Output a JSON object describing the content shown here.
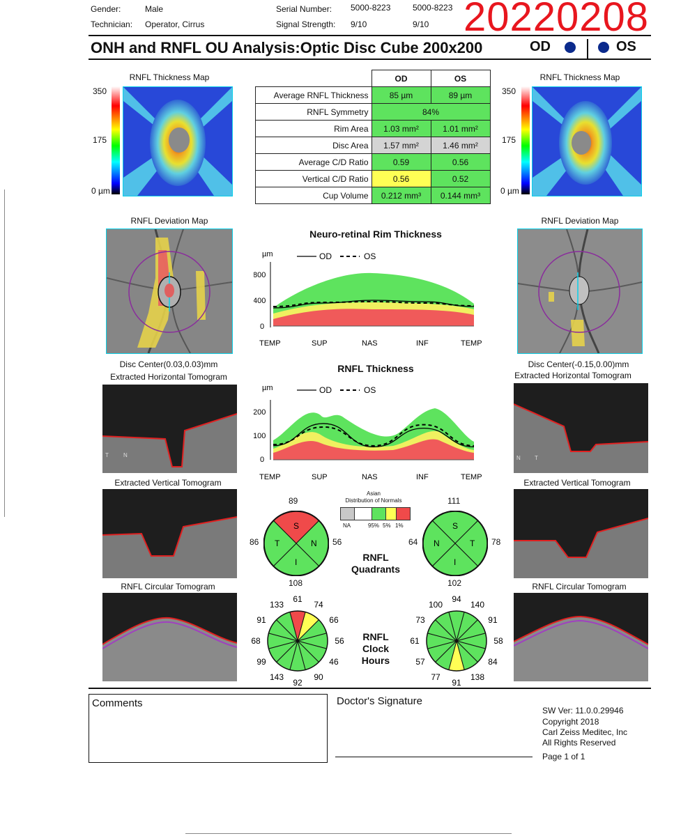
{
  "header": {
    "gender_label": "Gender:",
    "gender": "Male",
    "technician_label": "Technician:",
    "technician": "Operator, Cirrus",
    "serial_label": "Serial Number:",
    "serial_od": "5000-8223",
    "serial_os": "5000-8223",
    "signal_label": "Signal Strength:",
    "signal_od": "9/10",
    "signal_os": "9/10",
    "date_code": "20220208"
  },
  "title": "ONH and RNFL OU Analysis:Optic Disc Cube 200x200",
  "eye_labels": {
    "od": "OD",
    "os": "OS"
  },
  "maps": {
    "thickness_title": "RNFL Thickness Map",
    "scale_top": "350",
    "scale_mid": "175",
    "scale_bottom": "0 µm",
    "deviation_title": "RNFL Deviation Map",
    "disc_center_od": "Disc Center(0.03,0.03)mm",
    "disc_center_os": "Disc Center(-0.15,0.00)mm",
    "horiz_tomo": "Extracted Horizontal Tomogram",
    "vert_tomo": "Extracted Vertical Tomogram",
    "circ_tomo": "RNFL Circular Tomogram"
  },
  "table": {
    "col_od": "OD",
    "col_os": "OS",
    "rows": [
      {
        "label": "Average RNFL Thickness",
        "od": "85 µm",
        "os": "89 µm"
      },
      {
        "label": "RNFL Symmetry",
        "both": "84%"
      },
      {
        "label": "Rim Area",
        "od": "1.03 mm²",
        "os": "1.01 mm²"
      },
      {
        "label": "Disc Area",
        "od": "1.57 mm²",
        "os": "1.46 mm²"
      },
      {
        "label": "Average C/D Ratio",
        "od": "0.59",
        "os": "0.56"
      },
      {
        "label": "Vertical C/D Ratio",
        "od": "0.56",
        "os": "0.52"
      },
      {
        "label": "Cup Volume",
        "od": "0.212 mm³",
        "os": "0.144 mm³"
      }
    ]
  },
  "charts_text": {
    "rim_title": "Neuro-retinal Rim Thickness",
    "rnfl_title": "RNFL Thickness",
    "unit": "µm",
    "legend_od": "OD",
    "legend_os": "OS",
    "x_ticks": [
      "TEMP",
      "SUP",
      "NAS",
      "INF",
      "TEMP"
    ],
    "rim_y_ticks": [
      "800",
      "400",
      "0"
    ],
    "rnfl_y_ticks": [
      "200",
      "100",
      "0"
    ]
  },
  "chart_data": [
    {
      "type": "line",
      "title": "Neuro-retinal Rim Thickness",
      "ylabel": "µm",
      "x": [
        "TEMP",
        "SUP",
        "NAS",
        "INF",
        "TEMP"
      ],
      "ylim": [
        0,
        900
      ],
      "series": [
        {
          "name": "OD",
          "values": [
            260,
            330,
            370,
            350,
            280
          ]
        },
        {
          "name": "OS",
          "values": [
            280,
            340,
            350,
            330,
            290
          ]
        }
      ]
    },
    {
      "type": "line",
      "title": "RNFL Thickness",
      "ylabel": "µm",
      "x": [
        "TEMP",
        "SUP",
        "NAS",
        "INF",
        "TEMP"
      ],
      "ylim": [
        0,
        250
      ],
      "series": [
        {
          "name": "OD",
          "values": [
            60,
            155,
            55,
            135,
            55
          ]
        },
        {
          "name": "OS",
          "values": [
            65,
            140,
            60,
            150,
            60
          ]
        }
      ]
    }
  ],
  "legend_normals": {
    "title1": "Asian",
    "title2": "Distribution of Normals",
    "labels": [
      "NA",
      "95%",
      "5%",
      "1%"
    ]
  },
  "quadrants": {
    "label1": "RNFL",
    "label2": "Quadrants",
    "od": {
      "top": "89",
      "left": "86",
      "right": "56",
      "bottom": "108",
      "s": "S",
      "t": "T",
      "n": "N",
      "i": "I"
    },
    "os": {
      "top": "111",
      "left": "64",
      "right": "78",
      "bottom": "102",
      "s": "S",
      "t": "T",
      "n": "N",
      "i": "I"
    }
  },
  "clock": {
    "label1": "RNFL",
    "label2": "Clock",
    "label3": "Hours",
    "od": [
      "61",
      "74",
      "66",
      "56",
      "46",
      "90",
      "92",
      "143",
      "99",
      "68",
      "91",
      "133"
    ],
    "os": [
      "94",
      "140",
      "91",
      "58",
      "84",
      "138",
      "91",
      "77",
      "57",
      "61",
      "73",
      "100"
    ]
  },
  "footer": {
    "comments": "Comments",
    "signature": "Doctor's Signature",
    "sw": "SW Ver: 11.0.0.29946",
    "copyright": "Copyright 2018",
    "company": "Carl Zeiss Meditec, Inc",
    "rights": "All Rights Reserved",
    "page": "Page 1 of 1"
  },
  "colors": {
    "green": "#5ee35e",
    "yellow": "#ffff55",
    "red": "#f04a4a",
    "gray": "#d4d4d4",
    "datecode": "#e8161e",
    "eye_dot": "#0b2a8c"
  }
}
